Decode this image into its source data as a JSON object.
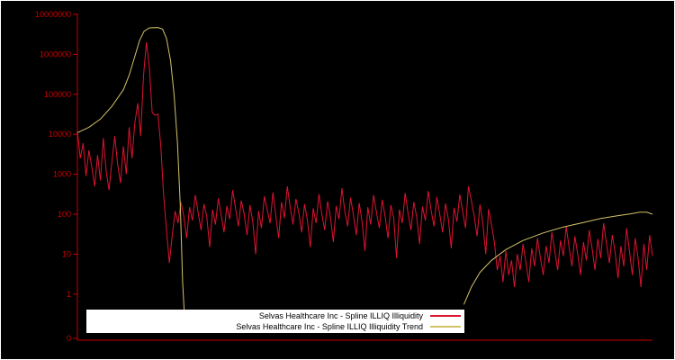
{
  "chart_data": {
    "type": "line",
    "title": "",
    "x_axis_labels": [],
    "y_scale": "log10",
    "ylim_log": [
      0,
      7
    ],
    "grid": false,
    "background_color": "#000000",
    "axis_color": "#cc0000",
    "y_ticks": [
      "10000000",
      "1000000",
      "100000",
      "10000",
      "1000",
      "100",
      "10",
      "1",
      "0"
    ],
    "legend_position": "bottom-center",
    "legend_background": "#ffffff",
    "series": [
      {
        "name": "Selvas Healthcare Inc - Spline ILLIQ Illiquidity",
        "color": "#dc1432",
        "values": [
          12000,
          2500,
          6000,
          900,
          4000,
          1500,
          500,
          3000,
          700,
          8000,
          1200,
          400,
          2000,
          9000,
          1800,
          600,
          5000,
          1000,
          15000,
          2500,
          20000,
          60000,
          9000,
          300000,
          2000000,
          500000,
          35000,
          30000,
          32000,
          5000,
          300,
          40,
          6,
          30,
          120,
          60,
          200,
          90,
          25,
          150,
          70,
          300,
          110,
          40,
          180,
          85,
          15,
          130,
          55,
          250,
          95,
          35,
          160,
          75,
          400,
          140,
          50,
          220,
          100,
          30,
          170,
          65,
          10,
          120,
          45,
          280,
          130,
          60,
          350,
          90,
          25,
          200,
          80,
          500,
          150,
          55,
          240,
          110,
          35,
          180,
          70,
          15,
          140,
          60,
          320,
          100,
          40,
          210,
          85,
          20,
          160,
          75,
          450,
          120,
          50,
          260,
          95,
          30,
          190,
          65,
          12,
          150,
          55,
          300,
          110,
          45,
          230,
          90,
          25,
          170,
          80,
          8,
          130,
          60,
          340,
          105,
          40,
          200,
          85,
          18,
          155,
          70,
          380,
          125,
          50,
          270,
          100,
          35,
          185,
          75,
          14,
          145,
          65,
          310,
          115,
          45,
          500,
          220,
          90,
          28,
          175,
          60,
          10,
          135,
          55,
          20,
          4,
          9,
          2,
          12,
          3,
          7,
          1.5,
          10,
          4,
          18,
          6,
          2,
          14,
          5,
          25,
          8,
          3,
          16,
          6,
          35,
          12,
          4,
          22,
          9,
          50,
          15,
          5,
          28,
          10,
          3,
          20,
          7,
          40,
          14,
          4,
          24,
          8,
          60,
          18,
          6,
          30,
          11,
          2.5,
          16,
          5,
          45,
          12,
          3,
          25,
          8,
          1.5,
          18,
          4,
          30,
          9
        ]
      },
      {
        "name": "Selvas Healthcare Inc - Spline ILLIQ Illiquidity Trend",
        "color": "#d2c26a",
        "segments": [
          [
            [
              0.0,
              11000
            ],
            [
              0.02,
              15000
            ],
            [
              0.04,
              24000
            ],
            [
              0.06,
              50000
            ],
            [
              0.08,
              130000
            ],
            [
              0.09,
              300000
            ],
            [
              0.1,
              900000
            ],
            [
              0.108,
              2200000
            ],
            [
              0.116,
              3800000
            ],
            [
              0.125,
              4600000
            ],
            [
              0.14,
              4700000
            ],
            [
              0.148,
              4300000
            ],
            [
              0.155,
              2500000
            ],
            [
              0.162,
              700000
            ],
            [
              0.168,
              100000
            ],
            [
              0.174,
              6000
            ],
            [
              0.179,
              150
            ],
            [
              0.183,
              2
            ],
            [
              0.186,
              0.3
            ]
          ],
          [
            [
              0.672,
              0.55
            ],
            [
              0.685,
              1.5
            ],
            [
              0.7,
              3.5
            ],
            [
              0.72,
              7
            ],
            [
              0.745,
              13
            ],
            [
              0.775,
              22
            ],
            [
              0.81,
              34
            ],
            [
              0.845,
              48
            ],
            [
              0.88,
              62
            ],
            [
              0.91,
              78
            ],
            [
              0.94,
              92
            ],
            [
              0.962,
              102
            ],
            [
              0.978,
              112
            ],
            [
              0.99,
              112
            ],
            [
              1.0,
              100
            ]
          ]
        ]
      }
    ]
  }
}
